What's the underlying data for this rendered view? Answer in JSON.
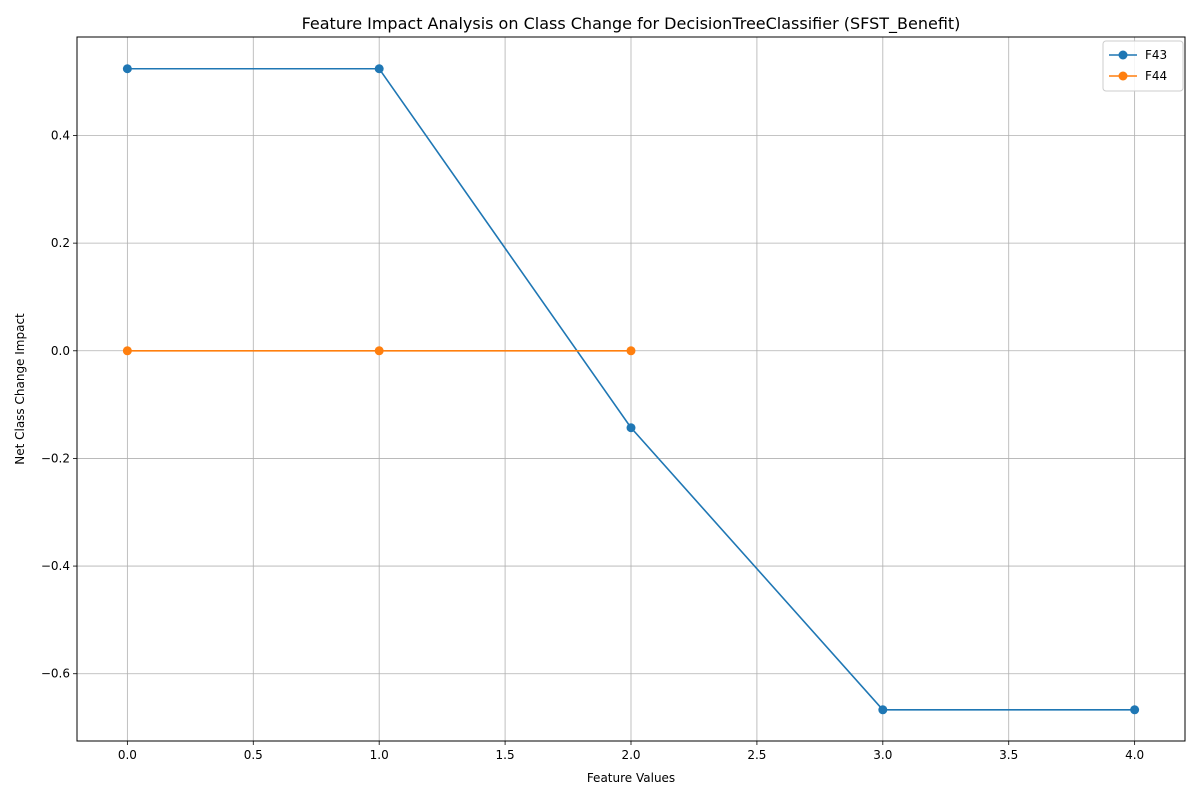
{
  "chart_data": {
    "type": "line",
    "title": "Feature Impact Analysis on Class Change for DecisionTreeClassifier (SFST_Benefit)",
    "xlabel": "Feature Values",
    "ylabel": "Net Class Change Impact",
    "xlim": [
      -0.2,
      4.2
    ],
    "ylim": [
      -0.725,
      0.583
    ],
    "x_ticks": [
      0.0,
      0.5,
      1.0,
      1.5,
      2.0,
      2.5,
      3.0,
      3.5,
      4.0
    ],
    "x_tick_labels": [
      "0.0",
      "0.5",
      "1.0",
      "1.5",
      "2.0",
      "2.5",
      "3.0",
      "3.5",
      "4.0"
    ],
    "y_ticks": [
      -0.6,
      -0.4,
      -0.2,
      0.0,
      0.2,
      0.4
    ],
    "y_tick_labels": [
      "−0.6",
      "−0.4",
      "−0.2",
      "0.0",
      "0.2",
      "0.4"
    ],
    "grid": true,
    "legend_position": "top-right",
    "series": [
      {
        "name": "F43",
        "color": "#1f77b4",
        "x": [
          0,
          1,
          2,
          3,
          4
        ],
        "y": [
          0.524,
          0.524,
          -0.143,
          -0.667,
          -0.667
        ]
      },
      {
        "name": "F44",
        "color": "#ff7f0e",
        "x": [
          0,
          1,
          2
        ],
        "y": [
          0.0,
          0.0,
          0.0
        ]
      }
    ]
  }
}
